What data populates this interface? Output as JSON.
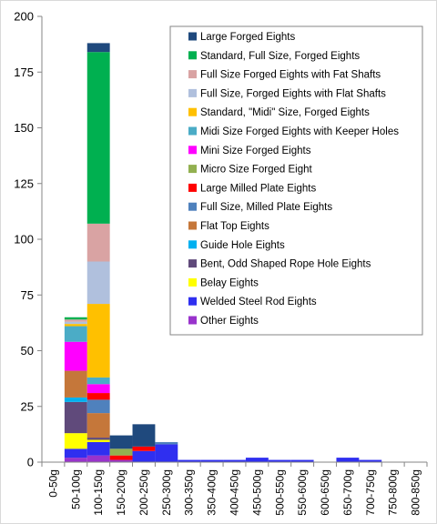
{
  "chart_data": {
    "type": "bar",
    "stacked": true,
    "categories": [
      "0-50g",
      "50-100g",
      "100-150g",
      "150-200g",
      "200-250g",
      "250-300g",
      "300-350g",
      "350-400g",
      "400-450g",
      "450-500g",
      "500-550g",
      "550-600g",
      "600-650g",
      "650-700g",
      "700-750g",
      "750-800g",
      "800-850g"
    ],
    "ylim": [
      0,
      200
    ],
    "yticks": [
      0,
      25,
      50,
      75,
      100,
      125,
      150,
      175,
      200
    ],
    "grid": false,
    "legend_position": "top-right",
    "series": [
      {
        "name": "Other Eights",
        "color": "#9933cc",
        "values": [
          0,
          2,
          3,
          1,
          0,
          0,
          0,
          0,
          0,
          0,
          0,
          0,
          0,
          0,
          0,
          0,
          0
        ]
      },
      {
        "name": "Welded Steel Rod Eights",
        "color": "#2f2ff0",
        "values": [
          0,
          4,
          6,
          0,
          5,
          8,
          1,
          1,
          1,
          2,
          1,
          1,
          0,
          2,
          1,
          0,
          0
        ]
      },
      {
        "name": "Belay Eights",
        "color": "#ffff00",
        "values": [
          0,
          7,
          1,
          0,
          0,
          0,
          0,
          0,
          0,
          0,
          0,
          0,
          0,
          0,
          0,
          0,
          0
        ]
      },
      {
        "name": "Bent, Odd Shaped Rope Hole Eights",
        "color": "#604a7b",
        "values": [
          0,
          14,
          1,
          0,
          0,
          0,
          0,
          0,
          0,
          0,
          0,
          0,
          0,
          0,
          0,
          0,
          0
        ]
      },
      {
        "name": "Guide Hole Eights",
        "color": "#00b0f0",
        "values": [
          0,
          2,
          0,
          0,
          0,
          0,
          0,
          0,
          0,
          0,
          0,
          0,
          0,
          0,
          0,
          0,
          0
        ]
      },
      {
        "name": "Flat Top Eights",
        "color": "#c5773a",
        "values": [
          0,
          12,
          11,
          0,
          0,
          0,
          0,
          0,
          0,
          0,
          0,
          0,
          0,
          0,
          0,
          0,
          0
        ]
      },
      {
        "name": "Full Size, Milled Plate Eights",
        "color": "#4f81bd",
        "values": [
          0,
          0,
          6,
          0,
          0,
          1,
          0,
          0,
          0,
          0,
          0,
          0,
          0,
          0,
          0,
          0,
          0
        ]
      },
      {
        "name": "Large Milled Plate Eights",
        "color": "#ff0000",
        "values": [
          0,
          0,
          3,
          2,
          2,
          0,
          0,
          0,
          0,
          0,
          0,
          0,
          0,
          0,
          0,
          0,
          0
        ]
      },
      {
        "name": "Micro Size Forged Eight",
        "color": "#92b050",
        "values": [
          0,
          0,
          0,
          3,
          0,
          0,
          0,
          0,
          0,
          0,
          0,
          0,
          0,
          0,
          0,
          0,
          0
        ]
      },
      {
        "name": "Mini Size Forged Eights",
        "color": "#ff00ff",
        "values": [
          0,
          13,
          4,
          0,
          0,
          0,
          0,
          0,
          0,
          0,
          0,
          0,
          0,
          0,
          0,
          0,
          0
        ]
      },
      {
        "name": "Midi Size Forged Eights with Keeper Holes",
        "color": "#4bacc6",
        "values": [
          0,
          7,
          3,
          0,
          0,
          0,
          0,
          0,
          0,
          0,
          0,
          0,
          0,
          0,
          0,
          0,
          0
        ]
      },
      {
        "name": "Standard, \"Midi\" Size, Forged Eights",
        "color": "#ffc000",
        "values": [
          0,
          1,
          33,
          0,
          0,
          0,
          0,
          0,
          0,
          0,
          0,
          0,
          0,
          0,
          0,
          0,
          0
        ]
      },
      {
        "name": "Full Size, Forged Eights with Flat Shafts",
        "color": "#b0c0dd",
        "values": [
          0,
          1,
          19,
          0,
          0,
          0,
          0,
          0,
          0,
          0,
          0,
          0,
          0,
          0,
          0,
          0,
          0
        ]
      },
      {
        "name": "Full Size Forged Eights with Fat Shafts",
        "color": "#d9a3a3",
        "values": [
          0,
          1,
          17,
          0,
          0,
          0,
          0,
          0,
          0,
          0,
          0,
          0,
          0,
          0,
          0,
          0,
          0
        ]
      },
      {
        "name": "Standard, Full Size, Forged Eights",
        "color": "#00b050",
        "values": [
          0,
          1,
          77,
          0,
          0,
          0,
          0,
          0,
          0,
          0,
          0,
          0,
          0,
          0,
          0,
          0,
          0
        ]
      },
      {
        "name": "Large Forged Eights",
        "color": "#1f497d",
        "values": [
          0,
          0,
          4,
          6,
          10,
          0,
          0,
          0,
          0,
          0,
          0,
          0,
          0,
          0,
          0,
          0,
          0
        ]
      }
    ]
  }
}
